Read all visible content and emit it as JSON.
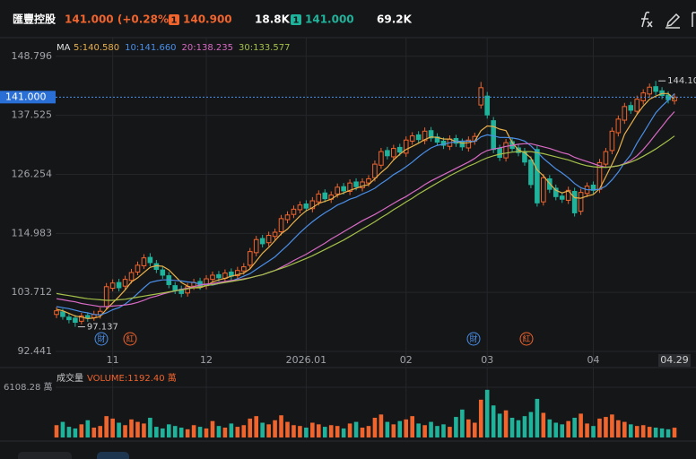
{
  "header": {
    "name": "匯豐控股",
    "quote": "141.000 (+0.28%)",
    "bid_tag": "1",
    "bid_price": "140.900",
    "bid_size": "18.8K",
    "ask_tag": "1",
    "ask_price": "141.000",
    "ask_size": "69.2K"
  },
  "chart_data": {
    "type": "candlestick",
    "categories": [
      null,
      null,
      null,
      null,
      null,
      null,
      null,
      null,
      null,
      "11",
      null,
      null,
      null,
      null,
      null,
      null,
      null,
      null,
      null,
      null,
      null,
      null,
      null,
      null,
      "12",
      null,
      null,
      null,
      null,
      null,
      null,
      null,
      null,
      null,
      null,
      null,
      null,
      null,
      null,
      null,
      "2026.01",
      null,
      null,
      null,
      null,
      null,
      null,
      null,
      null,
      null,
      null,
      null,
      null,
      null,
      null,
      null,
      "02",
      null,
      null,
      null,
      null,
      null,
      null,
      null,
      null,
      null,
      null,
      null,
      null,
      "03",
      null,
      null,
      null,
      null,
      null,
      null,
      null,
      null,
      null,
      null,
      null,
      null,
      null,
      null,
      null,
      null,
      "04",
      null,
      null,
      null,
      null,
      null,
      null,
      null,
      null,
      null,
      null,
      null,
      null,
      "04.29"
    ],
    "open": [
      99.5,
      100.0,
      99.0,
      98.8,
      98.2,
      99.3,
      98.9,
      99.4,
      101.0,
      104.5,
      105.6,
      104.9,
      106.0,
      107.6,
      108.8,
      110.4,
      109.2,
      108.0,
      106.9,
      105.0,
      104.3,
      103.6,
      104.9,
      105.8,
      105.0,
      106.2,
      107.1,
      106.4,
      107.6,
      106.9,
      107.8,
      108.9,
      111.3,
      114.0,
      113.2,
      114.4,
      115.3,
      117.6,
      118.6,
      119.5,
      120.6,
      119.7,
      121.0,
      122.7,
      121.5,
      122.5,
      123.9,
      123.0,
      124.8,
      123.7,
      124.6,
      125.6,
      128.0,
      130.8,
      129.6,
      131.4,
      130.3,
      132.6,
      133.8,
      132.7,
      134.6,
      133.4,
      132.6,
      131.6,
      133.1,
      132.4,
      131.3,
      132.6,
      139.5,
      141.2,
      136.5,
      131.2,
      129.4,
      132.5,
      131.3,
      130.6,
      129.0,
      131.0,
      121.0,
      125.4,
      123.6,
      122.1,
      121.3,
      123.0,
      119.2,
      122.6,
      124.2,
      123.4,
      128.2,
      130.8,
      134.2,
      136.6,
      139.4,
      138.3,
      140.3,
      141.6,
      143.0,
      142.2,
      141.4,
      140.3
    ],
    "high": [
      100.9,
      100.6,
      99.6,
      99.4,
      99.8,
      99.9,
      100.2,
      100.8,
      105.5,
      106.2,
      106.3,
      106.9,
      108.2,
      109.6,
      111.0,
      111.2,
      109.9,
      108.7,
      107.6,
      105.7,
      105.0,
      105.5,
      106.3,
      106.5,
      107.0,
      107.7,
      107.8,
      108.1,
      108.3,
      108.6,
      109.3,
      112.2,
      114.5,
      114.7,
      115.3,
      115.9,
      118.5,
      119.2,
      120.3,
      121.1,
      121.3,
      121.9,
      123.2,
      123.4,
      123.0,
      124.5,
      124.6,
      125.3,
      125.5,
      125.5,
      126.1,
      128.9,
      131.3,
      131.5,
      131.9,
      132.1,
      133.5,
      134.3,
      134.5,
      135.2,
      135.3,
      134.1,
      133.3,
      133.7,
      133.8,
      133.1,
      133.5,
      134.2,
      143.9,
      142.0,
      137.2,
      131.9,
      133.0,
      133.2,
      132.0,
      131.3,
      129.7,
      131.7,
      126.3,
      126.1,
      124.3,
      122.8,
      123.9,
      123.7,
      123.5,
      124.7,
      124.9,
      129.2,
      131.3,
      135.2,
      137.5,
      139.9,
      140.1,
      141.3,
      142.5,
      143.6,
      144.1,
      142.9,
      142.1,
      141.7
    ],
    "low": [
      98.8,
      98.5,
      97.8,
      97.137,
      97.6,
      98.1,
      98.3,
      98.7,
      100.4,
      103.9,
      103.9,
      104.3,
      105.4,
      107.0,
      108.2,
      108.7,
      107.4,
      106.3,
      104.5,
      103.4,
      102.8,
      102.9,
      104.2,
      104.2,
      104.3,
      105.5,
      105.8,
      105.7,
      106.1,
      106.2,
      107.1,
      108.2,
      110.6,
      112.3,
      112.5,
      113.7,
      114.6,
      116.9,
      117.9,
      118.8,
      119.1,
      119.0,
      120.3,
      120.9,
      120.8,
      121.8,
      122.4,
      122.3,
      123.2,
      123.0,
      123.9,
      124.9,
      127.3,
      129.1,
      128.9,
      129.8,
      129.6,
      131.9,
      132.2,
      132.0,
      132.5,
      131.7,
      131.1,
      130.9,
      131.5,
      130.8,
      130.6,
      131.9,
      138.8,
      136.9,
      130.3,
      128.8,
      128.7,
      130.5,
      129.7,
      127.9,
      123.6,
      120.1,
      120.3,
      122.7,
      121.3,
      120.8,
      120.6,
      118.2,
      118.5,
      121.9,
      122.5,
      122.7,
      127.5,
      130.1,
      133.5,
      135.9,
      137.8,
      137.6,
      139.6,
      140.9,
      141.4,
      140.6,
      139.8,
      139.6
    ],
    "close": [
      100.2,
      99.1,
      98.5,
      98.0,
      99.2,
      98.8,
      99.5,
      100.1,
      104.8,
      105.5,
      104.6,
      106.2,
      107.5,
      108.9,
      110.3,
      109.4,
      108.1,
      107.0,
      105.2,
      104.1,
      103.5,
      104.8,
      105.6,
      104.9,
      106.3,
      107.0,
      106.5,
      107.4,
      106.8,
      107.9,
      108.6,
      111.5,
      113.8,
      113.0,
      114.6,
      115.2,
      117.8,
      118.5,
      119.6,
      120.4,
      119.8,
      121.2,
      122.5,
      121.6,
      122.3,
      123.8,
      123.1,
      124.6,
      123.9,
      124.8,
      125.4,
      128.2,
      130.6,
      129.8,
      131.2,
      130.5,
      132.8,
      133.6,
      132.9,
      134.5,
      133.2,
      132.4,
      131.8,
      133.0,
      132.2,
      131.5,
      132.8,
      133.5,
      142.8,
      137.6,
      131.0,
      129.5,
      132.3,
      131.2,
      130.4,
      128.6,
      124.3,
      120.8,
      125.6,
      123.4,
      122.0,
      121.5,
      123.2,
      118.9,
      122.8,
      124.0,
      123.2,
      128.5,
      130.6,
      134.5,
      136.8,
      139.2,
      138.5,
      140.6,
      141.8,
      142.9,
      142.1,
      141.3,
      140.5,
      141.0
    ],
    "up_color": "#f0642d",
    "down_color": "#1fb39c",
    "ylim": [
      89.7,
      152.7
    ],
    "yticks": [
      148.796,
      137.525,
      126.254,
      114.983,
      103.712,
      92.441
    ],
    "last_price": {
      "value": 141.0,
      "label": "141.000"
    },
    "low_label": 97.137,
    "high_label": {
      "value": 144.1,
      "label": "144.100"
    },
    "ma_title": "MA",
    "series": [
      {
        "name": "5:140.580",
        "color": "#e8b04a",
        "values": [
          100.5,
          100.2,
          99.7,
          99.2,
          99.0,
          98.7,
          98.8,
          99.1,
          100.5,
          101.7,
          102.9,
          104.2,
          105.7,
          106.5,
          107.5,
          108.5,
          108.8,
          108.7,
          108.0,
          106.8,
          105.6,
          104.9,
          104.6,
          104.6,
          105.0,
          105.7,
          106.1,
          106.4,
          106.8,
          107.1,
          107.4,
          108.2,
          109.7,
          111.2,
          112.3,
          113.6,
          114.9,
          115.8,
          117.1,
          118.3,
          119.3,
          119.9,
          120.7,
          121.1,
          121.5,
          122.3,
          122.7,
          123.2,
          123.6,
          124.0,
          124.3,
          125.4,
          126.6,
          127.6,
          129.0,
          130.1,
          131.0,
          131.6,
          132.2,
          132.9,
          133.4,
          133.3,
          133.0,
          133.0,
          132.5,
          132.2,
          132.3,
          132.6,
          134.6,
          135.5,
          135.4,
          134.9,
          134.6,
          132.3,
          130.9,
          130.4,
          129.4,
          127.1,
          126.0,
          124.5,
          123.2,
          122.7,
          123.1,
          121.8,
          121.7,
          122.1,
          122.4,
          123.5,
          125.8,
          128.2,
          130.7,
          133.9,
          135.8,
          137.7,
          139.3,
          140.6,
          141.2,
          141.7,
          141.7,
          140.58
        ]
      },
      {
        "name": "10:141.660",
        "color": "#4a8fe8",
        "values": [
          101.0,
          100.8,
          100.6,
          100.3,
          100.0,
          99.8,
          99.5,
          99.4,
          99.8,
          100.4,
          100.8,
          101.5,
          102.4,
          103.5,
          104.6,
          105.6,
          105.9,
          106.1,
          106.1,
          106.0,
          105.9,
          105.7,
          105.6,
          105.3,
          105.2,
          105.1,
          105.4,
          105.7,
          105.9,
          106.3,
          106.8,
          107.3,
          108.1,
          108.9,
          109.7,
          110.5,
          111.6,
          112.7,
          113.9,
          115.1,
          116.2,
          117.2,
          118.1,
          118.9,
          119.6,
          120.4,
          120.9,
          121.5,
          121.9,
          122.5,
          123.0,
          123.6,
          124.5,
          125.3,
          126.2,
          126.9,
          127.7,
          128.6,
          129.6,
          130.5,
          131.3,
          131.8,
          132.0,
          132.3,
          132.5,
          132.6,
          132.6,
          132.5,
          133.4,
          133.8,
          133.6,
          133.3,
          133.3,
          133.2,
          133.0,
          132.6,
          131.7,
          130.5,
          129.3,
          128.3,
          127.3,
          126.5,
          125.6,
          124.5,
          123.7,
          123.3,
          123.3,
          123.4,
          124.0,
          125.2,
          126.7,
          128.5,
          130.0,
          132.2,
          134.1,
          136.1,
          138.0,
          139.3,
          140.4,
          141.66
        ]
      },
      {
        "name": "20:138.235",
        "color": "#d86ac4",
        "values": [
          102.5,
          102.3,
          102.1,
          101.9,
          101.6,
          101.4,
          101.2,
          101.0,
          101.0,
          101.1,
          101.2,
          101.3,
          101.5,
          101.8,
          102.2,
          102.7,
          103.0,
          103.4,
          103.7,
          104.0,
          104.3,
          104.5,
          104.8,
          105.1,
          105.3,
          105.4,
          105.6,
          105.8,
          106.0,
          106.1,
          106.3,
          106.5,
          106.8,
          107.1,
          107.5,
          107.9,
          108.5,
          109.1,
          109.8,
          110.4,
          111.0,
          111.7,
          112.4,
          113.1,
          113.9,
          114.6,
          115.3,
          116.0,
          116.7,
          117.4,
          118.0,
          118.6,
          119.3,
          120.0,
          120.7,
          121.4,
          122.0,
          122.8,
          123.5,
          124.3,
          125.0,
          125.6,
          126.2,
          126.8,
          127.4,
          128.0,
          128.6,
          129.3,
          130.2,
          130.8,
          131.1,
          131.3,
          131.6,
          131.8,
          132.0,
          132.1,
          132.1,
          131.8,
          131.5,
          131.2,
          130.8,
          130.4,
          130.1,
          129.5,
          129.1,
          128.7,
          128.3,
          127.9,
          127.6,
          127.7,
          127.9,
          128.3,
          128.9,
          129.8,
          131.0,
          132.4,
          133.9,
          135.4,
          136.9,
          138.235
        ]
      },
      {
        "name": "30:133.577",
        "color": "#a4c04a",
        "values": [
          103.5,
          103.3,
          103.1,
          102.9,
          102.7,
          102.5,
          102.4,
          102.3,
          102.2,
          102.2,
          102.3,
          102.4,
          102.6,
          102.8,
          103.0,
          103.2,
          103.4,
          103.6,
          103.8,
          104.0,
          104.2,
          104.4,
          104.6,
          104.8,
          105.0,
          105.2,
          105.4,
          105.6,
          105.8,
          106.0,
          106.2,
          106.5,
          106.8,
          107.1,
          107.5,
          107.9,
          108.3,
          108.7,
          109.2,
          109.7,
          110.2,
          110.7,
          111.3,
          111.9,
          112.5,
          113.1,
          113.7,
          114.4,
          115.1,
          115.8,
          116.5,
          117.2,
          118.0,
          118.7,
          119.5,
          120.2,
          121.0,
          121.7,
          122.5,
          123.2,
          123.9,
          124.6,
          125.3,
          126.0,
          126.6,
          127.2,
          127.8,
          128.3,
          128.9,
          129.4,
          129.8,
          130.1,
          130.3,
          130.5,
          130.6,
          130.6,
          130.6,
          130.4,
          130.2,
          129.9,
          129.6,
          129.3,
          129.0,
          128.6,
          128.2,
          127.9,
          127.7,
          127.6,
          127.6,
          127.7,
          127.9,
          128.2,
          128.6,
          129.1,
          129.7,
          130.4,
          131.1,
          131.9,
          132.7,
          133.577
        ]
      }
    ],
    "events": [
      "財",
      "紅",
      "財",
      "紅"
    ],
    "volume": {
      "title": "成交量",
      "label": "VOLUME:1192.40 萬",
      "ylim": [
        0,
        6108.28
      ],
      "yticks": [
        {
          "value": 6108.28,
          "label": "6108.28 萬"
        }
      ],
      "values": [
        1500,
        1900,
        1300,
        1100,
        1600,
        2100,
        1200,
        1400,
        2600,
        2300,
        1800,
        1500,
        2200,
        1900,
        1700,
        2400,
        1300,
        1100,
        1600,
        1400,
        1200,
        1000,
        1500,
        1300,
        1100,
        2000,
        1400,
        1200,
        1700,
        1300,
        1500,
        2300,
        2600,
        1800,
        1600,
        2100,
        2700,
        1900,
        1500,
        1400,
        1200,
        1800,
        1600,
        1300,
        1500,
        1400,
        1100,
        1700,
        1900,
        1200,
        1400,
        2400,
        2800,
        1900,
        1600,
        2000,
        2200,
        2600,
        1700,
        1500,
        1900,
        1400,
        1600,
        1300,
        2500,
        3400,
        2200,
        1800,
        4600,
        5800,
        3900,
        2900,
        3300,
        2400,
        2100,
        2600,
        3100,
        4700,
        3000,
        2200,
        1800,
        1600,
        2000,
        2400,
        2900,
        1700,
        1400,
        2300,
        2500,
        2800,
        2100,
        1900,
        1600,
        1400,
        1500,
        1300,
        1200,
        1100,
        1000,
        1192.4
      ]
    }
  }
}
